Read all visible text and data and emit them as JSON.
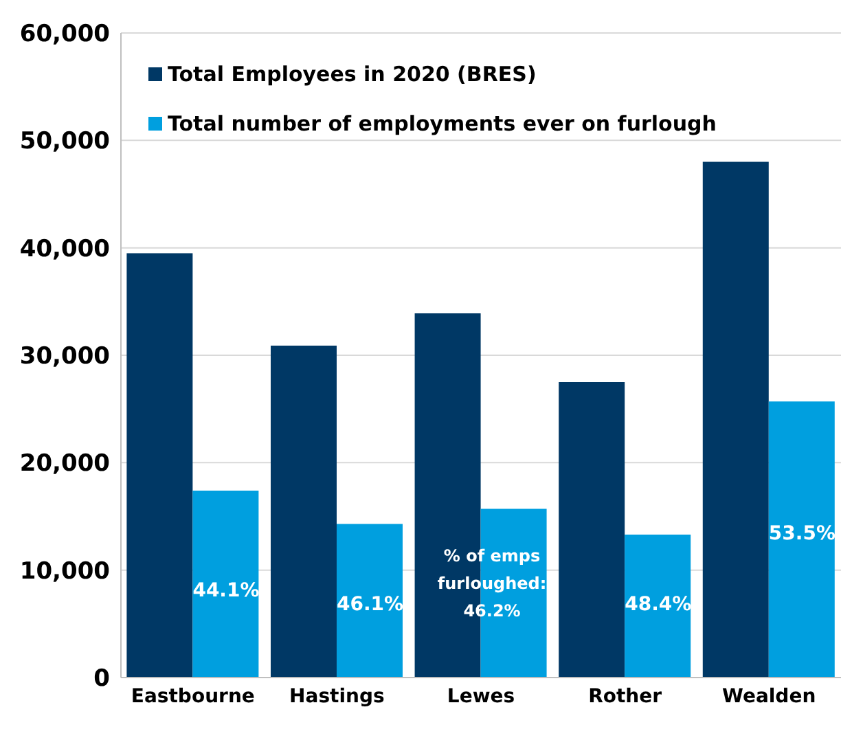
{
  "chart_data": {
    "type": "bar",
    "categories": [
      "Eastbourne",
      "Hastings",
      "Lewes",
      "Rother",
      "Wealden"
    ],
    "series": [
      {
        "name": "Total Employees in 2020 (BRES)",
        "color": "#003865",
        "values": [
          39500,
          30900,
          33900,
          27500,
          48000
        ]
      },
      {
        "name": "Total number of employments ever on furlough",
        "color": "#009fdf",
        "values": [
          17400,
          14300,
          15700,
          13300,
          25700
        ]
      }
    ],
    "annotations": [
      {
        "text": "44.1%",
        "x": "Eastbourne",
        "y": 8200
      },
      {
        "text": "46.1%",
        "x": "Hastings",
        "y": 6900
      },
      {
        "text": "% of emps\nfurloughed:\n46.2%",
        "x": "Lewes",
        "y": 8900
      },
      {
        "text": "48.4%",
        "x": "Rother",
        "y": 6900
      },
      {
        "text": "53.5%",
        "x": "Wealden",
        "y": 13500
      }
    ],
    "ylim": [
      0,
      60000
    ],
    "yticks": [
      {
        "value": 0,
        "label": "0"
      },
      {
        "value": 10000,
        "label": "10,000"
      },
      {
        "value": 20000,
        "label": "20,000"
      },
      {
        "value": 30000,
        "label": "30,000"
      },
      {
        "value": 40000,
        "label": "40,000"
      },
      {
        "value": 50000,
        "label": "50,000"
      },
      {
        "value": 60000,
        "label": "60,000"
      }
    ],
    "grid": "y",
    "legend": "top left"
  }
}
